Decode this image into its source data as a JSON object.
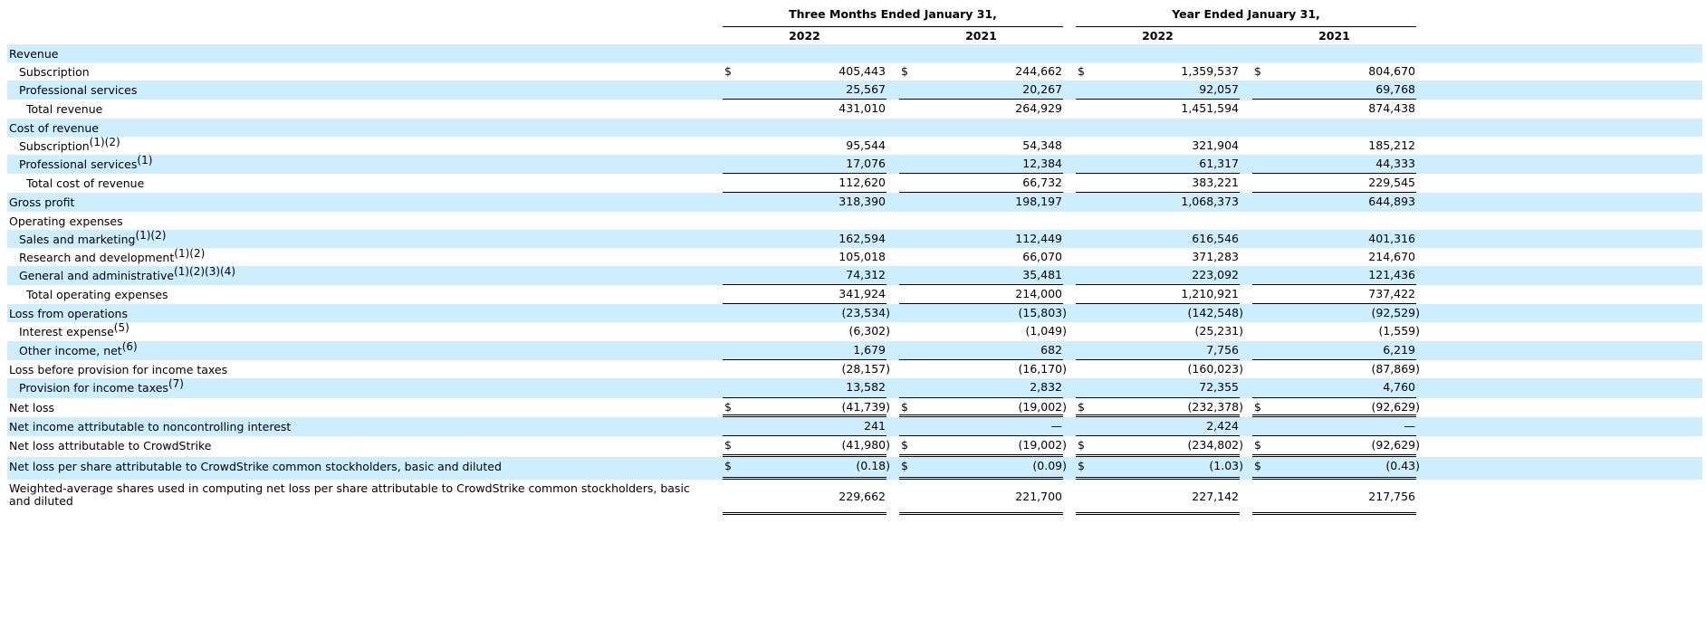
{
  "header": {
    "groups": [
      "Three Months Ended January 31,",
      "Year Ended January 31,"
    ],
    "years": [
      "2022",
      "2021",
      "2022",
      "2021"
    ]
  },
  "rows": [
    {
      "label": "Revenue",
      "indent": 0,
      "shade": true,
      "values": [
        "",
        "",
        "",
        ""
      ]
    },
    {
      "label": "Subscription",
      "indent": 1,
      "shade": false,
      "dollar": true,
      "values": [
        "405,443",
        "244,662",
        "1,359,537",
        "804,670"
      ]
    },
    {
      "label": "Professional services",
      "indent": 1,
      "shade": true,
      "values": [
        "25,567",
        "20,267",
        "92,057",
        "69,768"
      ]
    },
    {
      "label": "Total revenue",
      "indent": 2,
      "shade": false,
      "values": [
        "431,010",
        "264,929",
        "1,451,594",
        "874,438"
      ]
    },
    {
      "label": "Cost of revenue",
      "indent": 0,
      "shade": true,
      "values": [
        "",
        "",
        "",
        ""
      ]
    },
    {
      "label": "Subscription",
      "sup": "(1)(2)",
      "indent": 1,
      "shade": false,
      "values": [
        "95,544",
        "54,348",
        "321,904",
        "185,212"
      ]
    },
    {
      "label": "Professional services",
      "sup": "(1)",
      "indent": 1,
      "shade": true,
      "values": [
        "17,076",
        "12,384",
        "61,317",
        "44,333"
      ]
    },
    {
      "label": "Total cost of revenue",
      "indent": 2,
      "shade": false,
      "values": [
        "112,620",
        "66,732",
        "383,221",
        "229,545"
      ]
    },
    {
      "label": "Gross profit",
      "indent": 0,
      "shade": true,
      "values": [
        "318,390",
        "198,197",
        "1,068,373",
        "644,893"
      ]
    },
    {
      "label": "Operating expenses",
      "indent": 0,
      "shade": false,
      "values": [
        "",
        "",
        "",
        ""
      ]
    },
    {
      "label": "Sales and marketing",
      "sup": "(1)(2)",
      "indent": 1,
      "shade": true,
      "values": [
        "162,594",
        "112,449",
        "616,546",
        "401,316"
      ]
    },
    {
      "label": "Research and development",
      "sup": "(1)(2)",
      "indent": 1,
      "shade": false,
      "values": [
        "105,018",
        "66,070",
        "371,283",
        "214,670"
      ]
    },
    {
      "label": "General and administrative",
      "sup": "(1)(2)(3)(4)",
      "indent": 1,
      "shade": true,
      "values": [
        "74,312",
        "35,481",
        "223,092",
        "121,436"
      ]
    },
    {
      "label": "Total operating expenses",
      "indent": 2,
      "shade": false,
      "values": [
        "341,924",
        "214,000",
        "1,210,921",
        "737,422"
      ]
    },
    {
      "label": "Loss from operations",
      "indent": 0,
      "shade": true,
      "values": [
        "(23,534)",
        "(15,803)",
        "(142,548)",
        "(92,529)"
      ]
    },
    {
      "label": "Interest expense",
      "sup": "(5)",
      "indent": 1,
      "shade": false,
      "values": [
        "(6,302)",
        "(1,049)",
        "(25,231)",
        "(1,559)"
      ]
    },
    {
      "label": "Other income, net",
      "sup": "(6)",
      "indent": 1,
      "shade": true,
      "values": [
        "1,679",
        "682",
        "7,756",
        "6,219"
      ]
    },
    {
      "label": "Loss before provision for income taxes",
      "indent": 0,
      "shade": false,
      "values": [
        "(28,157)",
        "(16,170)",
        "(160,023)",
        "(87,869)"
      ]
    },
    {
      "label": "Provision for income taxes",
      "sup": "(7)",
      "indent": 1,
      "shade": true,
      "values": [
        "13,582",
        "2,832",
        "72,355",
        "4,760"
      ]
    },
    {
      "label": "Net loss",
      "indent": 0,
      "shade": false,
      "dollar": true,
      "values": [
        "(41,739)",
        "(19,002)",
        "(232,378)",
        "(92,629)"
      ]
    },
    {
      "label": "Net income attributable to noncontrolling interest",
      "indent": 0,
      "shade": true,
      "values": [
        "241",
        "—",
        "2,424",
        "—"
      ]
    },
    {
      "label": "Net loss attributable to CrowdStrike",
      "indent": 0,
      "shade": false,
      "dollar": true,
      "values": [
        "(41,980)",
        "(19,002)",
        "(234,802)",
        "(92,629)"
      ]
    },
    {
      "label": "Net loss per share attributable to CrowdStrike common stockholders, basic and diluted",
      "indent": 0,
      "shade": true,
      "dollar": true,
      "values": [
        "(0.18)",
        "(0.09)",
        "(1.03)",
        "(0.43)"
      ]
    },
    {
      "label": "Weighted-average shares used in computing net loss per share attributable to CrowdStrike common stockholders, basic and diluted",
      "indent": 0,
      "shade": false,
      "values": [
        "229,662",
        "221,700",
        "227,142",
        "217,756"
      ]
    }
  ],
  "currency_symbol": "$"
}
